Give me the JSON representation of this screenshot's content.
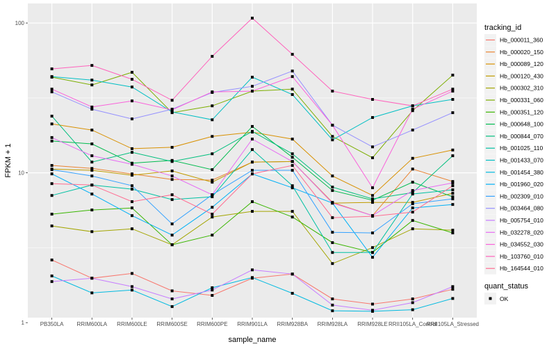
{
  "chart_data": {
    "type": "line",
    "xlabel": "sample_name",
    "ylabel": "FPKM + 1",
    "yscale": "log10",
    "ylim": [
      1.08,
      135
    ],
    "yticks": [
      1,
      10,
      100
    ],
    "ytick_labels": [
      "1",
      "10",
      "100"
    ],
    "y_minor_gridlines": [
      3.16,
      31.6
    ],
    "grid": true,
    "panel_background": "#EBEBEB",
    "point_color": "#000000",
    "categories": [
      "PB350LA",
      "RRIM600LA",
      "RRIM600LE",
      "RRIM600SE",
      "RRIM600PE",
      "RRIM901LA",
      "RRIM928BA",
      "RRIM928LA",
      "RRIM928LE",
      "RRII105LA_Control",
      "RRII105LA_Stressed"
    ],
    "legend": {
      "position": "right",
      "title": "tracking_id",
      "shape_title": "quant_status",
      "shape_entries": [
        "OK"
      ]
    },
    "series": [
      {
        "name": "Hb_000011_360",
        "color": "#F8766D",
        "values": [
          2.62,
          1.98,
          2.13,
          1.63,
          1.52,
          1.98,
          2.11,
          1.44,
          1.33,
          1.44,
          1.67
        ]
      },
      {
        "name": "Hb_000020_150",
        "color": "#EA8331",
        "values": [
          11.2,
          10.7,
          9.84,
          9.03,
          8.94,
          11.8,
          11.9,
          6.35,
          5.18,
          10.6,
          8.75
        ]
      },
      {
        "name": "Hb_000089_120",
        "color": "#D89000",
        "values": [
          21.2,
          19.3,
          14.5,
          14.8,
          17.5,
          18.7,
          16.8,
          9.53,
          7.06,
          12.5,
          14.2
        ]
      },
      {
        "name": "Hb_000120_430",
        "color": "#C09B00",
        "values": [
          10.6,
          10.4,
          9.64,
          10.3,
          8.66,
          11.8,
          11.9,
          6.28,
          6.35,
          6.35,
          7.3
        ]
      },
      {
        "name": "Hb_000302_310",
        "color": "#A3A500",
        "values": [
          4.42,
          4.05,
          4.23,
          3.31,
          5.07,
          5.53,
          5.53,
          2.48,
          3.17,
          4.23,
          4.14
        ]
      },
      {
        "name": "Hb_000331_060",
        "color": "#7CAE00",
        "values": [
          43.5,
          38.6,
          46.9,
          25.2,
          28.0,
          35.1,
          36.2,
          17.5,
          12.6,
          26.0,
          44.9
        ]
      },
      {
        "name": "Hb_000351_120",
        "color": "#39B600",
        "values": [
          5.3,
          5.65,
          5.83,
          3.31,
          3.84,
          6.42,
          5.07,
          3.42,
          2.94,
          4.81,
          3.97
        ]
      },
      {
        "name": "Hb_000648_100",
        "color": "#00BB4E",
        "values": [
          16.3,
          15.6,
          11.6,
          12.1,
          10.5,
          20.4,
          12.7,
          7.62,
          6.56,
          8.66,
          6.92
        ]
      },
      {
        "name": "Hb_000844_070",
        "color": "#00BF7D",
        "values": [
          23.9,
          11.8,
          13.7,
          11.9,
          13.4,
          18.9,
          13.4,
          8.03,
          6.7,
          7.38,
          13.0
        ]
      },
      {
        "name": "Hb_001025_110",
        "color": "#00C1A3",
        "values": [
          7.06,
          8.29,
          7.78,
          6.63,
          6.92,
          14.3,
          8.2,
          2.94,
          2.94,
          7.22,
          7.7
        ]
      },
      {
        "name": "Hb_001433_070",
        "color": "#00BFC4",
        "values": [
          43.9,
          41.6,
          37.4,
          25.5,
          22.6,
          43.5,
          33.3,
          16.6,
          23.4,
          28.0,
          30.9
        ]
      },
      {
        "name": "Hb_001454_380",
        "color": "#00BAE0",
        "values": [
          2.05,
          1.58,
          1.65,
          1.28,
          1.71,
          2.0,
          1.57,
          1.2,
          1.19,
          1.22,
          1.45
        ]
      },
      {
        "name": "Hb_001960_020",
        "color": "#00B0F6",
        "values": [
          9.84,
          7.22,
          5.18,
          3.84,
          5.89,
          9.84,
          7.94,
          6.28,
          2.73,
          5.83,
          6.15
        ]
      },
      {
        "name": "Hb_002309_010",
        "color": "#35A2FF",
        "values": [
          10.5,
          9.53,
          8.2,
          4.56,
          7.14,
          10.4,
          10.4,
          4.01,
          3.97,
          6.22,
          6.7
        ]
      },
      {
        "name": "Hb_003464_080",
        "color": "#9590FF",
        "values": [
          34.7,
          26.6,
          22.9,
          26.6,
          34.4,
          37.8,
          47.8,
          20.8,
          14.9,
          19.3,
          25.2
        ]
      },
      {
        "name": "Hb_005754_010",
        "color": "#C77CFF",
        "values": [
          1.88,
          1.98,
          1.74,
          1.44,
          1.65,
          2.25,
          2.11,
          1.31,
          1.21,
          1.36,
          1.74
        ]
      },
      {
        "name": "Hb_032278_020",
        "color": "#E76BF3",
        "values": [
          17.2,
          13.0,
          11.4,
          9.53,
          7.14,
          16.8,
          11.9,
          6.28,
          5.18,
          7.62,
          8.57
        ]
      },
      {
        "name": "Hb_034552_030",
        "color": "#FA62DB",
        "values": [
          36.2,
          27.5,
          30.2,
          26.3,
          34.7,
          35.1,
          43.9,
          20.8,
          7.95,
          26.6,
          35.1
        ]
      },
      {
        "name": "Hb_103760_010",
        "color": "#FF62BC",
        "values": [
          49.4,
          52.1,
          42.1,
          30.5,
          59.9,
          107.8,
          61.8,
          35.1,
          30.9,
          28.0,
          36.2
        ]
      },
      {
        "name": "Hb_164544_010",
        "color": "#FF6C91",
        "values": [
          8.47,
          8.29,
          6.42,
          7.14,
          5.3,
          9.84,
          11.2,
          5.02,
          5.13,
          5.47,
          8.2
        ]
      }
    ]
  }
}
